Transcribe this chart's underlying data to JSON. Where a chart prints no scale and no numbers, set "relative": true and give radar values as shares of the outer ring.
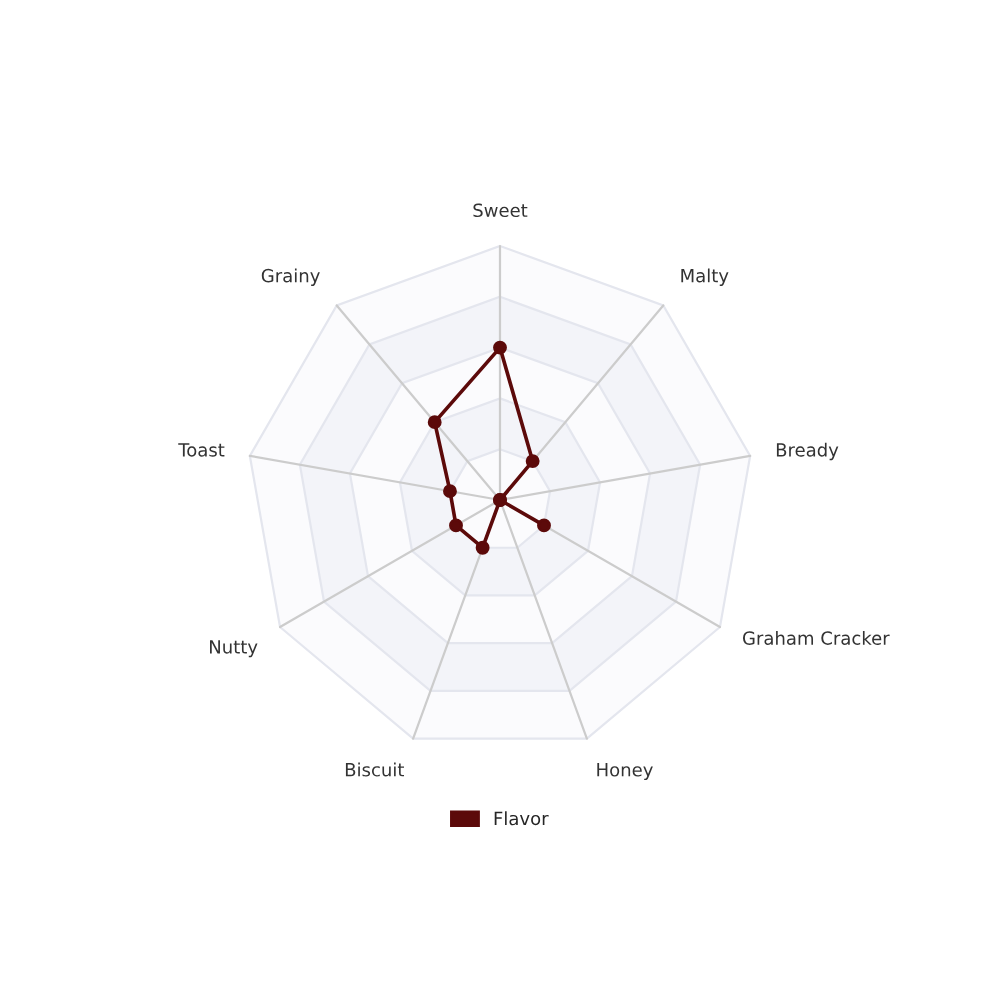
{
  "chart_data": {
    "type": "radar",
    "relative": true,
    "categories": [
      "Sweet",
      "Malty",
      "Bready",
      "Graham Cracker",
      "Honey",
      "Biscuit",
      "Nutty",
      "Toast",
      "Grainy"
    ],
    "series": [
      {
        "name": "Flavor",
        "color": "#5c0a0a",
        "values": [
          0.6,
          0.2,
          0,
          0.2,
          0,
          0.2,
          0.2,
          0.2,
          0.4
        ]
      }
    ],
    "grid": true,
    "legend": "bottom",
    "marker": "circle",
    "line_style": "solid"
  }
}
